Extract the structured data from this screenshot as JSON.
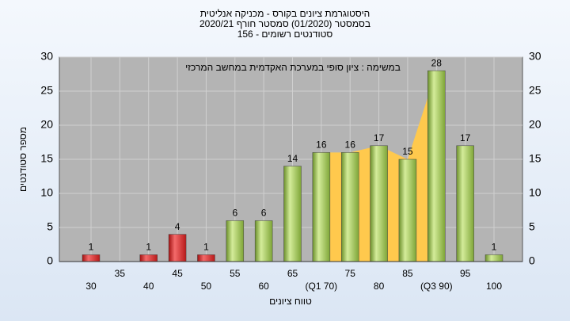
{
  "chart_data": {
    "type": "bar",
    "title": [
      "היסטוגרמת ציונים בקורס - מכניקה אנליטית",
      "בסמסטר  (01/2020)  סמסטר חורף 2020/21",
      "סטודנטים רשומים - 156"
    ],
    "annotation": "במשימה : ציון סופי במערכת האקדמית במחשב המרכזי",
    "y_label": "מספר סטודנטים",
    "x_label": "טווח ציונים",
    "categories": [
      "30",
      "35",
      "40",
      "45",
      "50",
      "55",
      "60",
      "65",
      "(Q1 70)",
      "75",
      "80",
      "85",
      "(Q3 90)",
      "95",
      "100"
    ],
    "values": [
      1,
      0,
      1,
      4,
      1,
      6,
      6,
      14,
      16,
      16,
      17,
      15,
      28,
      17,
      1
    ],
    "colors": [
      "red",
      "red",
      "red",
      "red",
      "red",
      "green",
      "green",
      "green",
      "green",
      "green",
      "green",
      "green",
      "green",
      "green",
      "green"
    ],
    "quartile_color": "#ffc94d",
    "ylim": [
      0,
      30
    ],
    "yticks": [
      0,
      5,
      10,
      15,
      20,
      25,
      30
    ],
    "grid": true
  }
}
